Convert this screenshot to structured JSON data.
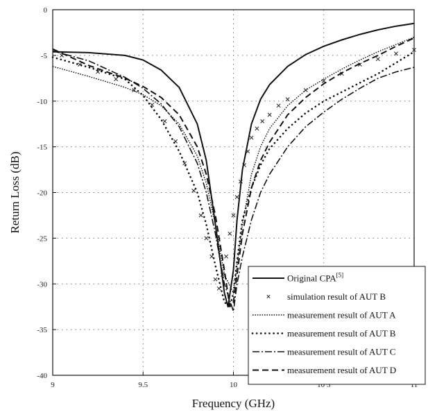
{
  "chart_data": {
    "type": "line",
    "xlabel": "Frequency (GHz)",
    "ylabel": "Return Loss (dB)",
    "xlim": [
      9,
      11
    ],
    "ylim": [
      -40,
      0
    ],
    "xticks": [
      9,
      9.5,
      10,
      10.5,
      11
    ],
    "xtick_labels": [
      "9",
      "9.5",
      "10",
      "10 5",
      "11"
    ],
    "yticks": [
      0,
      -5,
      -10,
      -15,
      -20,
      -25,
      -30,
      -35,
      -40
    ],
    "ytick_labels": [
      "0",
      "-5",
      "-10",
      "-15",
      "-20",
      "-25",
      "-30",
      "-35",
      "-40"
    ],
    "grid": true,
    "legend_position": "bottom-right",
    "series": [
      {
        "name": "Original CPA",
        "name_sup": "[5]",
        "style": "solid",
        "x": [
          9.0,
          9.2,
          9.4,
          9.5,
          9.6,
          9.7,
          9.8,
          9.85,
          9.9,
          9.95,
          9.97,
          10.0,
          10.02,
          10.05,
          10.1,
          10.15,
          10.2,
          10.3,
          10.4,
          10.5,
          10.6,
          10.7,
          10.8,
          10.9,
          11.0
        ],
        "y": [
          -4.6,
          -4.7,
          -5.0,
          -5.5,
          -6.6,
          -8.5,
          -12.5,
          -16.5,
          -23.5,
          -31.0,
          -32.5,
          -28.5,
          -23.0,
          -17.5,
          -12.5,
          -9.8,
          -8.2,
          -6.2,
          -4.9,
          -4.0,
          -3.3,
          -2.7,
          -2.2,
          -1.8,
          -1.5
        ]
      },
      {
        "name": "simulation result of AUT B",
        "style": "markers",
        "x": [
          9.05,
          9.15,
          9.25,
          9.35,
          9.45,
          9.55,
          9.62,
          9.68,
          9.73,
          9.78,
          9.82,
          9.85,
          9.88,
          9.9,
          9.92,
          9.94,
          9.96,
          9.98,
          10.0,
          10.02,
          10.04,
          10.06,
          10.08,
          10.1,
          10.13,
          10.16,
          10.2,
          10.25,
          10.3,
          10.4,
          10.5,
          10.6,
          10.7,
          10.8,
          10.9,
          11.0
        ],
        "y": [
          -5.0,
          -6.0,
          -6.8,
          -7.6,
          -8.8,
          -10.4,
          -12.2,
          -14.4,
          -16.8,
          -19.8,
          -22.5,
          -25.0,
          -27.0,
          -29.5,
          -30.5,
          -29.0,
          -27.0,
          -24.5,
          -22.5,
          -20.5,
          -18.8,
          -17.0,
          -15.5,
          -14.0,
          -13.0,
          -12.2,
          -11.5,
          -10.5,
          -9.8,
          -8.8,
          -7.8,
          -7.0,
          -6.0,
          -5.4,
          -4.8,
          -4.4
        ]
      },
      {
        "name": "measurement result of AUT A",
        "style": "dotted",
        "x": [
          9.0,
          9.2,
          9.4,
          9.5,
          9.6,
          9.7,
          9.8,
          9.85,
          9.9,
          9.95,
          10.0,
          10.02,
          10.05,
          10.1,
          10.15,
          10.2,
          10.3,
          10.4,
          10.5,
          10.6,
          10.7,
          10.8,
          10.9,
          11.0
        ],
        "y": [
          -6.2,
          -7.3,
          -8.5,
          -9.3,
          -10.5,
          -12.5,
          -16.0,
          -19.0,
          -23.5,
          -29.0,
          -31.0,
          -28.0,
          -23.5,
          -18.0,
          -15.0,
          -13.0,
          -10.5,
          -8.8,
          -7.6,
          -6.5,
          -5.5,
          -4.6,
          -3.8,
          -3.0
        ]
      },
      {
        "name": "measurement result of AUT B",
        "style": "dots",
        "x": [
          9.0,
          9.2,
          9.4,
          9.5,
          9.6,
          9.7,
          9.8,
          9.85,
          9.9,
          9.95,
          9.98,
          10.0,
          10.02,
          10.05,
          10.1,
          10.15,
          10.2,
          10.3,
          10.4,
          10.5,
          10.6,
          10.7,
          10.8,
          10.9,
          11.0
        ],
        "y": [
          -5.2,
          -6.3,
          -7.6,
          -9.4,
          -12.0,
          -15.5,
          -20.0,
          -23.5,
          -28.0,
          -32.0,
          -32.5,
          -31.0,
          -27.5,
          -23.0,
          -19.5,
          -17.0,
          -15.2,
          -13.0,
          -11.3,
          -10.0,
          -9.0,
          -8.0,
          -7.0,
          -5.8,
          -4.6
        ]
      },
      {
        "name": "measurement result of AUT C",
        "style": "dashdot",
        "x": [
          9.0,
          9.2,
          9.4,
          9.5,
          9.6,
          9.7,
          9.8,
          9.85,
          9.9,
          9.95,
          10.0,
          10.02,
          10.05,
          10.1,
          10.15,
          10.2,
          10.3,
          10.4,
          10.5,
          10.6,
          10.7,
          10.8,
          10.9,
          11.0
        ],
        "y": [
          -4.5,
          -5.6,
          -7.4,
          -8.6,
          -10.3,
          -12.8,
          -16.8,
          -20.0,
          -24.5,
          -30.0,
          -33.0,
          -30.0,
          -27.0,
          -23.0,
          -20.0,
          -18.0,
          -15.0,
          -12.8,
          -11.2,
          -9.8,
          -8.6,
          -7.5,
          -6.8,
          -6.3
        ]
      },
      {
        "name": "measurement result of AUT D",
        "style": "dashed",
        "x": [
          9.0,
          9.2,
          9.4,
          9.5,
          9.6,
          9.7,
          9.8,
          9.85,
          9.9,
          9.95,
          9.98,
          10.0,
          10.02,
          10.05,
          10.1,
          10.15,
          10.2,
          10.3,
          10.4,
          10.5,
          10.6,
          10.7,
          10.8,
          10.9,
          11.0
        ],
        "y": [
          -4.3,
          -6.1,
          -7.5,
          -8.4,
          -9.6,
          -11.5,
          -15.0,
          -18.0,
          -22.5,
          -28.5,
          -32.5,
          -32.0,
          -29.0,
          -24.5,
          -19.5,
          -16.5,
          -14.5,
          -11.5,
          -9.6,
          -8.1,
          -6.9,
          -5.9,
          -5.0,
          -4.0,
          -3.1
        ]
      }
    ]
  }
}
